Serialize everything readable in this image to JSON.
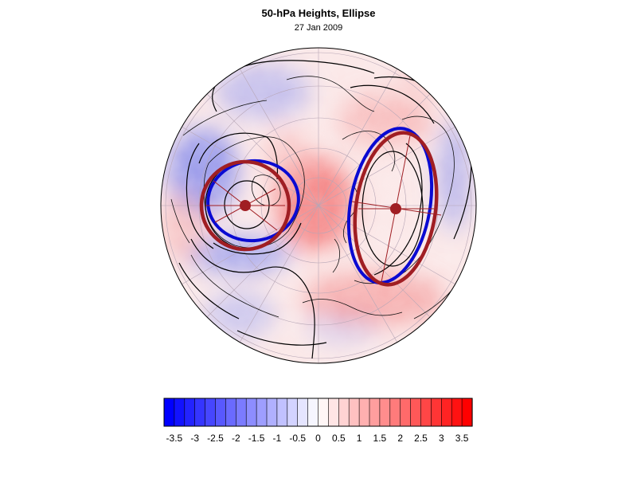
{
  "header": {
    "title": "50-hPa Heights, Ellipse",
    "date": "27 Jan 2009"
  },
  "map": {
    "projection": "north-polar-stereographic",
    "field": "standardized 50-hPa height anomaly",
    "contour_color": "#000000",
    "fit_ellipse_color": "#a01e23",
    "vortex_edge_color": "#0a0ad2",
    "centers": [
      {
        "name": "western-vortex-center",
        "color": "#a01e23"
      },
      {
        "name": "eastern-vortex-center",
        "color": "#a01e23"
      }
    ]
  },
  "colorbar": {
    "ticks": [
      "-3.5",
      "-3",
      "-2.5",
      "-2",
      "-1.5",
      "-1",
      "-0.5",
      "0",
      "0.5",
      "1",
      "1.5",
      "2",
      "2.5",
      "3",
      "3.5"
    ],
    "min": -3.75,
    "max": 3.75,
    "step": 0.25,
    "negative_color": "#0000ff",
    "positive_color": "#ff0000",
    "neutral_color": "#ffffff"
  }
}
